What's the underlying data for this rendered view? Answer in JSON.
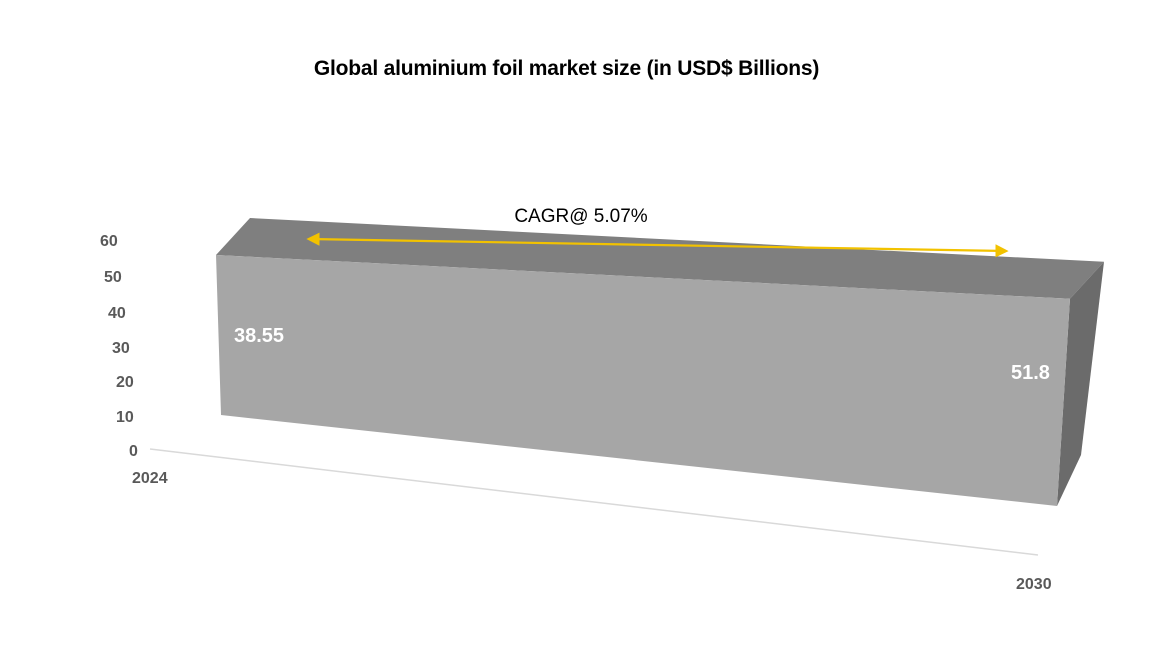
{
  "chart_data": {
    "type": "area",
    "title": "Global aluminium foil market size (in USD$ Billions)",
    "xlabel": "",
    "ylabel": "",
    "categories": [
      "2024",
      "2030"
    ],
    "series": [
      {
        "values": [
          38.55,
          51.8
        ]
      }
    ],
    "data_labels": [
      "38.55",
      "51.8"
    ],
    "ylim": [
      0,
      60
    ],
    "yticks": [
      0,
      10,
      20,
      30,
      40,
      50,
      60
    ],
    "grid": false,
    "legend": "none",
    "rendering": "3d",
    "annotation": {
      "text": "CAGR@ 5.07%",
      "style": "double-arrow"
    },
    "colors": {
      "front_face": "#a6a6a6",
      "top_face": "#7f7f7f",
      "side_face": "#6b6b6b",
      "arrow": "#f2c200",
      "axis_line": "#d9d9d9",
      "tick_text": "#595959",
      "data_label": "#ffffff"
    }
  }
}
